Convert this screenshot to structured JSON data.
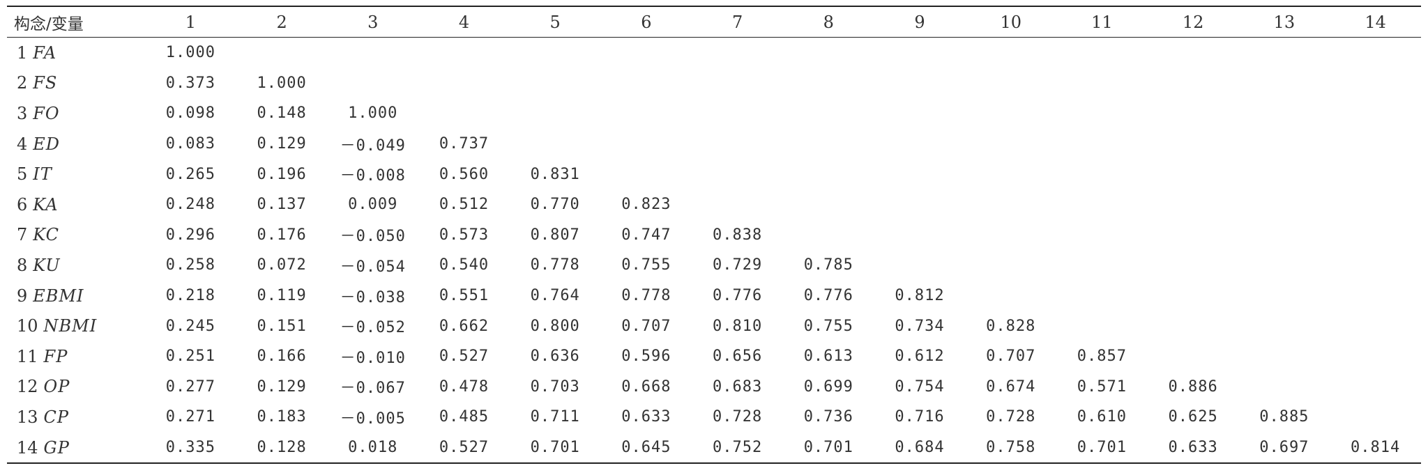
{
  "table": {
    "header_first": "构念/变量",
    "columns": [
      "1",
      "2",
      "3",
      "4",
      "5",
      "6",
      "7",
      "8",
      "9",
      "10",
      "11",
      "12",
      "13",
      "14"
    ],
    "rows": [
      {
        "num": "1",
        "abbr": "FA",
        "values": [
          "1.000"
        ]
      },
      {
        "num": "2",
        "abbr": "FS",
        "values": [
          "0.373",
          "1.000"
        ]
      },
      {
        "num": "3",
        "abbr": "FO",
        "values": [
          "0.098",
          "0.148",
          "1.000"
        ]
      },
      {
        "num": "4",
        "abbr": "ED",
        "values": [
          "0.083",
          "0.129",
          "－0.049",
          "0.737"
        ]
      },
      {
        "num": "5",
        "abbr": "IT",
        "values": [
          "0.265",
          "0.196",
          "－0.008",
          "0.560",
          "0.831"
        ]
      },
      {
        "num": "6",
        "abbr": "KA",
        "values": [
          "0.248",
          "0.137",
          "0.009",
          "0.512",
          "0.770",
          "0.823"
        ]
      },
      {
        "num": "7",
        "abbr": "KC",
        "values": [
          "0.296",
          "0.176",
          "－0.050",
          "0.573",
          "0.807",
          "0.747",
          "0.838"
        ]
      },
      {
        "num": "8",
        "abbr": "KU",
        "values": [
          "0.258",
          "0.072",
          "－0.054",
          "0.540",
          "0.778",
          "0.755",
          "0.729",
          "0.785"
        ]
      },
      {
        "num": "9",
        "abbr": "EBMI",
        "values": [
          "0.218",
          "0.119",
          "－0.038",
          "0.551",
          "0.764",
          "0.778",
          "0.776",
          "0.776",
          "0.812"
        ]
      },
      {
        "num": "10",
        "abbr": "NBMI",
        "values": [
          "0.245",
          "0.151",
          "－0.052",
          "0.662",
          "0.800",
          "0.707",
          "0.810",
          "0.755",
          "0.734",
          "0.828"
        ]
      },
      {
        "num": "11",
        "abbr": "FP",
        "values": [
          "0.251",
          "0.166",
          "－0.010",
          "0.527",
          "0.636",
          "0.596",
          "0.656",
          "0.613",
          "0.612",
          "0.707",
          "0.857"
        ]
      },
      {
        "num": "12",
        "abbr": "OP",
        "values": [
          "0.277",
          "0.129",
          "－0.067",
          "0.478",
          "0.703",
          "0.668",
          "0.683",
          "0.699",
          "0.754",
          "0.674",
          "0.571",
          "0.886"
        ]
      },
      {
        "num": "13",
        "abbr": "CP",
        "values": [
          "0.271",
          "0.183",
          "－0.005",
          "0.485",
          "0.711",
          "0.633",
          "0.728",
          "0.736",
          "0.716",
          "0.728",
          "0.610",
          "0.625",
          "0.885"
        ]
      },
      {
        "num": "14",
        "abbr": "GP",
        "values": [
          "0.335",
          "0.128",
          "0.018",
          "0.527",
          "0.701",
          "0.645",
          "0.752",
          "0.701",
          "0.684",
          "0.758",
          "0.701",
          "0.633",
          "0.697",
          "0.814"
        ]
      }
    ]
  }
}
